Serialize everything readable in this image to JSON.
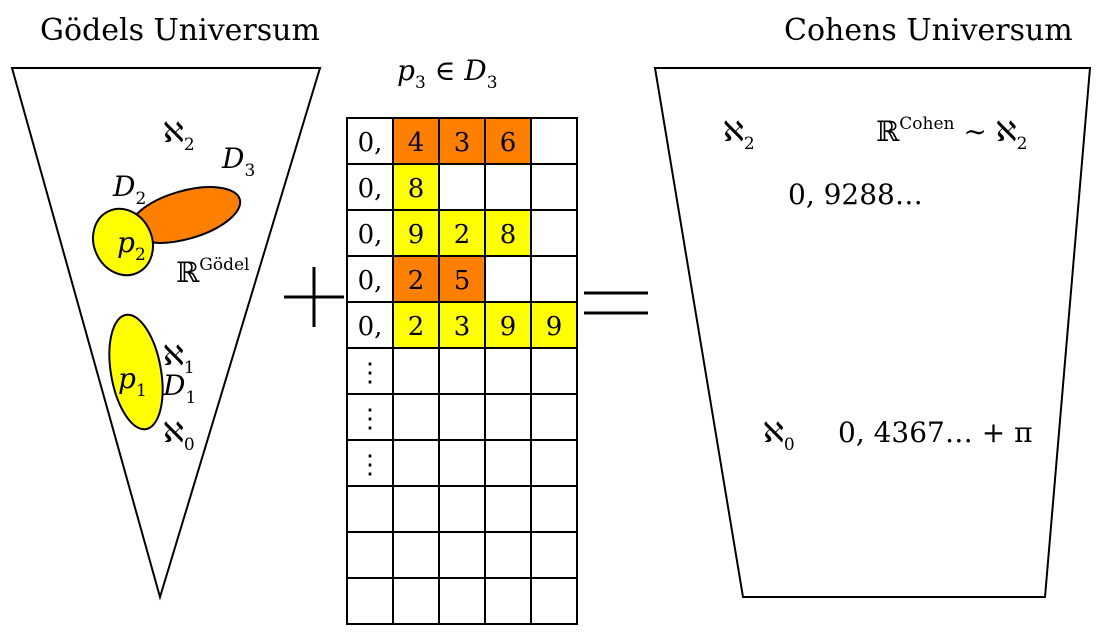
{
  "left_universe": {
    "title": "Gödels Universum",
    "aleph2": "ℵ",
    "aleph2_sub": "2",
    "aleph1": "ℵ",
    "aleph1_sub": "1",
    "aleph0": "ℵ",
    "aleph0_sub": "0",
    "d2": "D",
    "d2_sub": "2",
    "d3": "D",
    "d3_sub": "3",
    "d1": "D",
    "d1_sub": "1",
    "p2": "p",
    "p2_sub": "2",
    "p1": "p",
    "p1_sub": "1",
    "reals": "ℝ",
    "reals_sup": "Gödel"
  },
  "middle": {
    "condition": "p",
    "condition_sub": "3",
    "condition_rel": " ∈ ",
    "condition_set": "D",
    "condition_set_sub": "3",
    "rows": [
      {
        "prefix": "0,",
        "digits": [
          "4",
          "3",
          "6"
        ],
        "color": "orange"
      },
      {
        "prefix": "0,",
        "digits": [
          "8"
        ],
        "color": "yellow"
      },
      {
        "prefix": "0,",
        "digits": [
          "9",
          "2",
          "8"
        ],
        "color": "yellow"
      },
      {
        "prefix": "0,",
        "digits": [
          "2",
          "5"
        ],
        "color": "orange"
      },
      {
        "prefix": "0,",
        "digits": [
          "2",
          "3",
          "9",
          "9"
        ],
        "color": "yellow"
      },
      {
        "prefix": "⋮",
        "digits": [],
        "color": "none"
      },
      {
        "prefix": "⋮",
        "digits": [],
        "color": "none"
      },
      {
        "prefix": "⋮",
        "digits": [],
        "color": "none"
      },
      {
        "prefix": "",
        "digits": [],
        "color": "none"
      },
      {
        "prefix": "",
        "digits": [],
        "color": "none"
      },
      {
        "prefix": "",
        "digits": [],
        "color": "none"
      }
    ],
    "plus": "+",
    "equals": "="
  },
  "right_universe": {
    "title": "Cohens Universum",
    "aleph2": "ℵ",
    "aleph2_sub": "2",
    "reals": "ℝ",
    "reals_sup": "Cohen",
    "reals_rel": " ∼ ",
    "reals_rhs": "ℵ",
    "reals_rhs_sub": "2",
    "number1": "0, 9288…",
    "aleph0": "ℵ",
    "aleph0_sub": "0",
    "number2": "0, 4367… + π"
  },
  "colors": {
    "orange": "#ff7f00",
    "yellow": "#ffff00",
    "stroke": "#000000"
  }
}
